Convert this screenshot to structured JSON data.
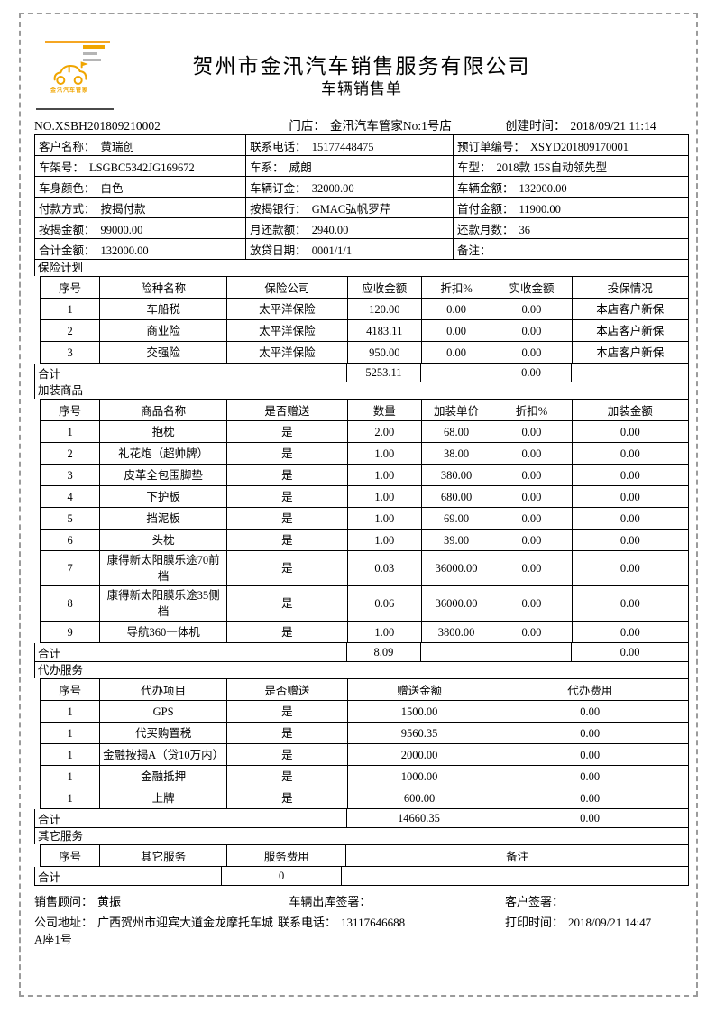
{
  "header": {
    "company_name": "贺州市金汛汽车销售服务有限公司",
    "doc_title": "车辆销售单",
    "logo_text": "金汛汽车管家"
  },
  "meta": {
    "order_no": "NO.XSBH201809210002",
    "store_label": "门店：",
    "store": "金汛汽车管家No:1号店",
    "created_label": "创建时间：",
    "created": "2018/09/21 11:14"
  },
  "info": {
    "rows": [
      [
        {
          "label": "客户名称：",
          "value": "黄瑞创"
        },
        {
          "label": "联系电话：",
          "value": "15177448475"
        },
        {
          "label": "预订单编号：",
          "value": "XSYD201809170001"
        }
      ],
      [
        {
          "label": "车架号：",
          "value": "LSGBC5342JG169672"
        },
        {
          "label": "车系：",
          "value": "威朗"
        },
        {
          "label": "车型：",
          "value": "2018款 15S自动领先型"
        }
      ],
      [
        {
          "label": "车身颜色：",
          "value": "白色"
        },
        {
          "label": "车辆订金：",
          "value": "32000.00"
        },
        {
          "label": "车辆金额：",
          "value": "132000.00"
        }
      ],
      [
        {
          "label": "付款方式：",
          "value": "按揭付款"
        },
        {
          "label": "按揭银行：",
          "value": "GMAC弘帆罗芹"
        },
        {
          "label": "首付金额：",
          "value": "11900.00"
        }
      ],
      [
        {
          "label": "按揭金额：",
          "value": "99000.00"
        },
        {
          "label": "月还款额：",
          "value": "2940.00"
        },
        {
          "label": "还款月数：",
          "value": "36"
        }
      ],
      [
        {
          "label": "合计金额：",
          "value": "132000.00"
        },
        {
          "label": "放贷日期：",
          "value": "0001/1/1"
        },
        {
          "label": "备注：",
          "value": ""
        }
      ]
    ]
  },
  "insurance": {
    "title": "保险计划",
    "headers": [
      "序号",
      "险种名称",
      "保险公司",
      "应收金额",
      "折扣%",
      "实收金额",
      "投保情况"
    ],
    "rows": [
      [
        "1",
        "车船税",
        "太平洋保险",
        "120.00",
        "0.00",
        "0.00",
        "本店客户新保"
      ],
      [
        "2",
        "商业险",
        "太平洋保险",
        "4183.11",
        "0.00",
        "0.00",
        "本店客户新保"
      ],
      [
        "3",
        "交强险",
        "太平洋保险",
        "950.00",
        "0.00",
        "0.00",
        "本店客户新保"
      ]
    ],
    "total_label": "合计",
    "totals": {
      "receivable": "5253.11",
      "received": "0.00"
    }
  },
  "addons": {
    "title": "加装商品",
    "headers": [
      "序号",
      "商品名称",
      "是否赠送",
      "数量",
      "加装单价",
      "折扣%",
      "加装金额"
    ],
    "rows": [
      [
        "1",
        "抱枕",
        "是",
        "2.00",
        "68.00",
        "0.00",
        "0.00"
      ],
      [
        "2",
        "礼花炮（超帅牌）",
        "是",
        "1.00",
        "38.00",
        "0.00",
        "0.00"
      ],
      [
        "3",
        "皮革全包围脚垫",
        "是",
        "1.00",
        "380.00",
        "0.00",
        "0.00"
      ],
      [
        "4",
        "下护板",
        "是",
        "1.00",
        "680.00",
        "0.00",
        "0.00"
      ],
      [
        "5",
        "挡泥板",
        "是",
        "1.00",
        "69.00",
        "0.00",
        "0.00"
      ],
      [
        "6",
        "头枕",
        "是",
        "1.00",
        "39.00",
        "0.00",
        "0.00"
      ],
      [
        "7",
        "康得新太阳膜乐途70前档",
        "是",
        "0.03",
        "36000.00",
        "0.00",
        "0.00"
      ],
      [
        "8",
        "康得新太阳膜乐途35侧档",
        "是",
        "0.06",
        "36000.00",
        "0.00",
        "0.00"
      ],
      [
        "9",
        "导航360一体机",
        "是",
        "1.00",
        "3800.00",
        "0.00",
        "0.00"
      ]
    ],
    "total_label": "合计",
    "totals": {
      "qty": "8.09",
      "amount": "0.00"
    }
  },
  "agency": {
    "title": "代办服务",
    "headers": [
      "序号",
      "代办项目",
      "是否赠送",
      "赠送金额",
      "代办费用"
    ],
    "rows": [
      [
        "1",
        "GPS",
        "是",
        "1500.00",
        "0.00"
      ],
      [
        "1",
        "代买购置税",
        "是",
        "9560.35",
        "0.00"
      ],
      [
        "1",
        "金融按揭A（贷10万内）",
        "是",
        "2000.00",
        "0.00"
      ],
      [
        "1",
        "金融抵押",
        "是",
        "1000.00",
        "0.00"
      ],
      [
        "1",
        "上牌",
        "是",
        "600.00",
        "0.00"
      ]
    ],
    "total_label": "合计",
    "totals": {
      "gift": "14660.35",
      "fee": "0.00"
    }
  },
  "other": {
    "title": "其它服务",
    "headers": [
      "序号",
      "其它服务",
      "服务费用",
      "备注"
    ],
    "total_label": "合计",
    "totals": {
      "fee": "0"
    }
  },
  "footer": {
    "advisor_label": "销售顾问：",
    "advisor_name": "黄振",
    "outbound_sign_label": "车辆出库签署：",
    "customer_sign_label": "客户签署：",
    "address_label": "公司地址：",
    "address": "广西贺州市迎宾大道金龙摩托车城",
    "phone_label": "联系电话：",
    "phone": "13117646688",
    "address_line2": "A座1号",
    "print_label": "打印时间：",
    "print_time": "2018/09/21 14:47"
  },
  "colors": {
    "accent_orange": "#f0a500",
    "line_dark": "#4a4a4a",
    "border_black": "#000000",
    "cutline_gray": "#9b9b9b"
  }
}
